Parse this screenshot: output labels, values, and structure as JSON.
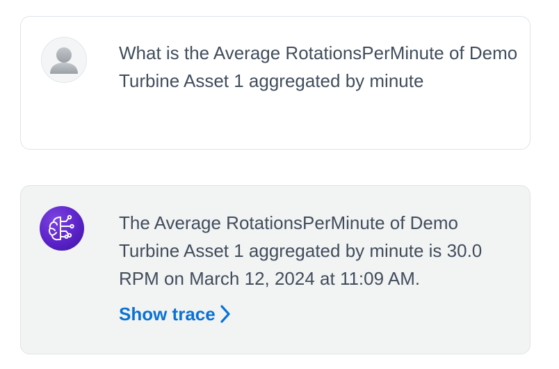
{
  "conversation": {
    "user_message": {
      "avatar_icon": "user-silhouette-icon",
      "text": "What is the Average RotationsPerMinute of Demo Turbine Asset 1 aggregated by minute"
    },
    "assistant_message": {
      "avatar_icon": "ai-brain-circuit-icon",
      "text": "The Average RotationsPerMinute of Demo Turbine Asset 1 aggregated by minute is 30.0 RPM on March 12, 2024 at 11:09 AM.",
      "trace_link_label": "Show trace",
      "trace_link_icon": "chevron-right-icon"
    }
  },
  "colors": {
    "text": "#414d5c",
    "link": "#0972d3",
    "assistant_card_bg": "#f2f3f3",
    "card_border": "#dfe3e8",
    "ai_avatar": "#5a22c8"
  }
}
